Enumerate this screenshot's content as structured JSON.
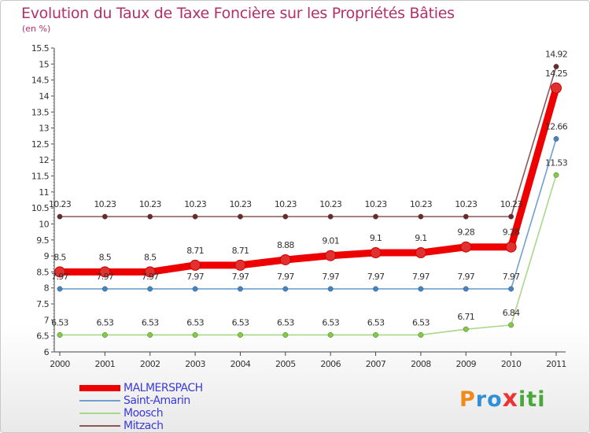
{
  "title": "Evolution du Taux de Taxe Foncière sur les Propriétés Bâties",
  "subtitle": "(en %)",
  "logo": {
    "p": "P",
    "ro": "ro",
    "x": "x",
    "iti": "iti"
  },
  "chart_data": {
    "type": "line",
    "title": "Evolution du Taux de Taxe Foncière sur les Propriétés Bâties",
    "ylabel": "(en %)",
    "xlabel": "",
    "ylim": [
      6,
      15.5
    ],
    "y_ticks": [
      "6",
      "6.5",
      "7",
      "7.5",
      "8",
      "8.5",
      "9",
      "9.5",
      "10",
      "10.5",
      "11",
      "11.5",
      "12",
      "12.5",
      "13",
      "13.5",
      "14",
      "14.5",
      "15",
      "15.5"
    ],
    "x": [
      "2000",
      "2001",
      "2002",
      "2003",
      "2004",
      "2005",
      "2006",
      "2007",
      "2008",
      "2009",
      "2010",
      "2011"
    ],
    "series": [
      {
        "name": "MALMERSPACH",
        "color": "#ee0000",
        "point_color": "#e03030",
        "bold": true,
        "values": [
          8.5,
          8.5,
          8.5,
          8.71,
          8.71,
          8.88,
          9.01,
          9.1,
          9.1,
          9.28,
          9.28,
          14.25
        ],
        "labels": [
          "8.5",
          "8.5",
          "8.5",
          "8.71",
          "8.71",
          "8.88",
          "9.01",
          "9.1",
          "9.1",
          "9.28",
          "9.28",
          "14.25"
        ]
      },
      {
        "name": "Saint-Amarin",
        "color": "#6fa0cf",
        "point_color": "#3f83c8",
        "bold": false,
        "values": [
          7.97,
          7.97,
          7.97,
          7.97,
          7.97,
          7.97,
          7.97,
          7.97,
          7.97,
          7.97,
          7.97,
          12.66
        ],
        "labels": [
          "7.97",
          "7.97",
          "7.97",
          "7.97",
          "7.97",
          "7.97",
          "7.97",
          "7.97",
          "7.97",
          "7.97",
          "7.97",
          "12.66"
        ]
      },
      {
        "name": "Moosch",
        "color": "#a8d88a",
        "point_color": "#7fcf3a",
        "bold": false,
        "values": [
          6.53,
          6.53,
          6.53,
          6.53,
          6.53,
          6.53,
          6.53,
          6.53,
          6.53,
          6.71,
          6.84,
          11.53
        ],
        "labels": [
          "6.53",
          "6.53",
          "6.53",
          "6.53",
          "6.53",
          "6.53",
          "6.53",
          "6.53",
          "6.53",
          "6.71",
          "6.84",
          "11.53"
        ]
      },
      {
        "name": "Mitzach",
        "color": "#8a5858",
        "point_color": "#6b2a2a",
        "bold": false,
        "values": [
          10.23,
          10.23,
          10.23,
          10.23,
          10.23,
          10.23,
          10.23,
          10.23,
          10.23,
          10.23,
          10.23,
          14.92
        ],
        "labels": [
          "10.23",
          "10.23",
          "10.23",
          "10.23",
          "10.23",
          "10.23",
          "10.23",
          "10.23",
          "10.23",
          "10.23",
          "10.23",
          "14.92"
        ]
      }
    ],
    "grid": false,
    "legend": "bottom-left"
  }
}
